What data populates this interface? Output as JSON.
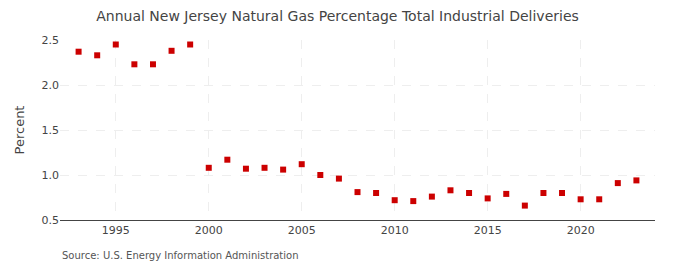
{
  "chart_data": {
    "type": "scatter",
    "title": "Annual New Jersey Natural Gas Percentage Total Industrial Deliveries",
    "y_label": "Percent",
    "annotations": [
      "Source: U.S. Energy Information Administration"
    ],
    "x": [
      1993,
      1994,
      1995,
      1996,
      1997,
      1998,
      1999,
      2000,
      2001,
      2002,
      2003,
      2004,
      2005,
      2006,
      2007,
      2008,
      2009,
      2010,
      2011,
      2012,
      2013,
      2014,
      2015,
      2016,
      2017,
      2018,
      2019,
      2020,
      2021,
      2022,
      2023
    ],
    "values": [
      2.37,
      2.33,
      2.45,
      2.23,
      2.23,
      2.38,
      2.45,
      1.08,
      1.17,
      1.07,
      1.08,
      1.06,
      1.12,
      1.0,
      0.96,
      0.81,
      0.8,
      0.72,
      0.71,
      0.76,
      0.83,
      0.8,
      0.74,
      0.79,
      0.66,
      0.8,
      0.8,
      0.73,
      0.73,
      0.91,
      0.94
    ],
    "color": "#cc0000",
    "marker": "square",
    "xlim": [
      1992,
      2024
    ],
    "ylim": [
      0.5,
      2.5
    ],
    "xticks": [
      1995,
      2000,
      2005,
      2010,
      2015,
      2020
    ],
    "yticks": [
      0.5,
      {
        "value": 1,
        "label": "1.0"
      },
      1.5,
      {
        "value": 2,
        "label": "2.0"
      },
      2.5
    ],
    "grid": true
  }
}
